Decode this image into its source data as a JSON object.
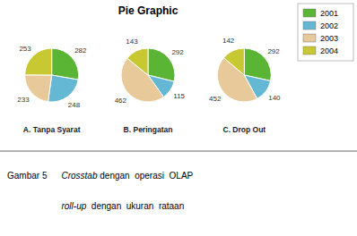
{
  "chart_data": {
    "type": "pie",
    "title": "Pie Graphic",
    "categories": [
      "2001",
      "2002",
      "2003",
      "2004"
    ],
    "colors": [
      "#5ab534",
      "#64b8d4",
      "#e8c99a",
      "#c8c832"
    ],
    "series": [
      {
        "name": "A. Tanpa Syarat",
        "values": [
          282,
          248,
          233,
          253
        ]
      },
      {
        "name": "B. Peringatan",
        "values": [
          292,
          115,
          462,
          143
        ]
      },
      {
        "name": "C. Drop Out",
        "values": [
          292,
          140,
          452,
          142
        ]
      }
    ],
    "data_labels": true,
    "legend": "upper right",
    "annotations": [
      "Gambar 5",
      "Crosstab",
      " dengan  operasi  OLAP",
      "roll-up",
      "  dengan  ukuran  rataan"
    ]
  }
}
